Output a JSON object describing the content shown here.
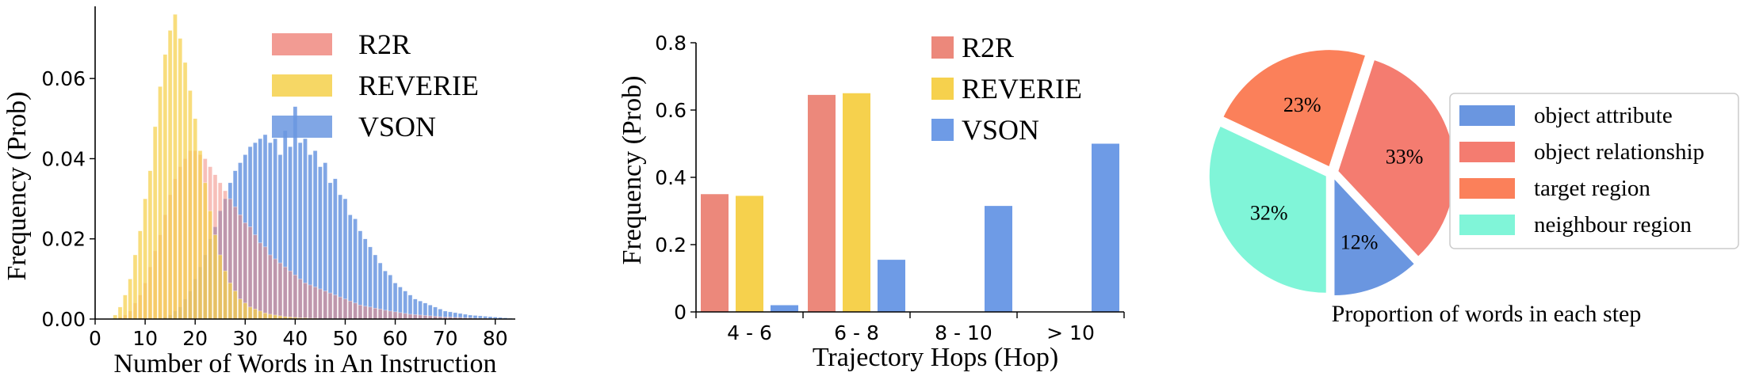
{
  "chart_data": [
    {
      "type": "bar",
      "subtype": "overlapping-histogram",
      "xlabel": "Number of Words in An Instruction",
      "ylabel": "Frequency (Prob)",
      "xlim": [
        0,
        84
      ],
      "ylim": [
        0,
        0.078
      ],
      "xticks": [
        "0",
        "10",
        "20",
        "30",
        "40",
        "50",
        "60",
        "70",
        "80"
      ],
      "yticks": [
        "0.00",
        "0.02",
        "0.04",
        "0.06"
      ],
      "legend_position": "top-right",
      "series": [
        {
          "name": "R2R",
          "color": "#f08a80",
          "x": [
            5,
            6,
            7,
            8,
            9,
            10,
            11,
            12,
            13,
            14,
            15,
            16,
            17,
            18,
            19,
            20,
            21,
            22,
            23,
            24,
            25,
            26,
            27,
            28,
            29,
            30,
            31,
            32,
            33,
            34,
            35,
            36,
            37,
            38,
            39,
            40,
            41,
            42,
            43,
            44,
            45,
            46,
            47,
            48,
            49,
            50,
            51,
            52,
            53,
            54,
            55,
            56,
            57,
            58,
            59,
            60,
            61,
            62,
            63,
            64,
            65,
            66,
            67,
            68,
            69,
            70,
            71,
            72,
            73,
            74,
            75,
            76,
            77,
            78,
            79,
            80
          ],
          "values": [
            0.0005,
            0.001,
            0.002,
            0.004,
            0.006,
            0.009,
            0.013,
            0.017,
            0.021,
            0.026,
            0.031,
            0.035,
            0.038,
            0.04,
            0.042,
            0.042,
            0.041,
            0.04,
            0.038,
            0.036,
            0.034,
            0.032,
            0.03,
            0.028,
            0.026,
            0.024,
            0.023,
            0.021,
            0.019,
            0.018,
            0.016,
            0.015,
            0.014,
            0.013,
            0.012,
            0.011,
            0.01,
            0.009,
            0.0085,
            0.008,
            0.0075,
            0.007,
            0.0065,
            0.006,
            0.0055,
            0.005,
            0.0045,
            0.004,
            0.0035,
            0.0032,
            0.003,
            0.0027,
            0.0025,
            0.0022,
            0.002,
            0.0018,
            0.0016,
            0.0014,
            0.0012,
            0.0011,
            0.001,
            0.0009,
            0.0008,
            0.0007,
            0.0006,
            0.0005,
            0.0005,
            0.0004,
            0.0004,
            0.0003,
            0.0003,
            0.0002,
            0.0002,
            0.0002,
            0.0001,
            0.0001
          ]
        },
        {
          "name": "REVERIE",
          "color": "#f5d04a",
          "x": [
            4,
            5,
            6,
            7,
            8,
            9,
            10,
            11,
            12,
            13,
            14,
            15,
            16,
            17,
            18,
            19,
            20,
            21,
            22,
            23,
            24,
            25,
            26,
            27,
            28,
            29,
            30,
            31,
            32,
            33,
            34,
            35,
            36,
            37,
            38,
            39,
            40,
            41,
            42,
            43,
            44,
            45,
            46,
            47,
            48,
            49,
            50
          ],
          "values": [
            0.001,
            0.003,
            0.006,
            0.01,
            0.016,
            0.022,
            0.03,
            0.037,
            0.048,
            0.058,
            0.066,
            0.072,
            0.076,
            0.07,
            0.064,
            0.057,
            0.05,
            0.042,
            0.034,
            0.027,
            0.021,
            0.016,
            0.012,
            0.009,
            0.007,
            0.005,
            0.004,
            0.003,
            0.0025,
            0.002,
            0.0015,
            0.0012,
            0.001,
            0.0008,
            0.0006,
            0.0005,
            0.0004,
            0.0003,
            0.0003,
            0.0002,
            0.0002,
            0.0001,
            0.0001,
            0.0001,
            0.0001,
            0.0001,
            0.0001
          ]
        },
        {
          "name": "VSON",
          "color": "#6a96e0",
          "x": [
            14,
            15,
            16,
            17,
            18,
            19,
            20,
            21,
            22,
            23,
            24,
            25,
            26,
            27,
            28,
            29,
            30,
            31,
            32,
            33,
            34,
            35,
            36,
            37,
            38,
            39,
            40,
            41,
            42,
            43,
            44,
            45,
            46,
            47,
            48,
            49,
            50,
            51,
            52,
            53,
            54,
            55,
            56,
            57,
            58,
            59,
            60,
            61,
            62,
            63,
            64,
            65,
            66,
            67,
            68,
            69,
            70,
            71,
            72,
            73,
            74,
            75,
            76,
            77,
            78,
            79,
            80,
            81,
            82,
            83
          ],
          "values": [
            0.0005,
            0.001,
            0.002,
            0.003,
            0.005,
            0.007,
            0.01,
            0.013,
            0.016,
            0.02,
            0.023,
            0.027,
            0.03,
            0.034,
            0.037,
            0.039,
            0.041,
            0.043,
            0.044,
            0.045,
            0.046,
            0.044,
            0.045,
            0.041,
            0.047,
            0.043,
            0.053,
            0.044,
            0.045,
            0.041,
            0.042,
            0.038,
            0.039,
            0.034,
            0.035,
            0.031,
            0.03,
            0.026,
            0.025,
            0.022,
            0.02,
            0.018,
            0.016,
            0.014,
            0.012,
            0.011,
            0.009,
            0.008,
            0.007,
            0.006,
            0.005,
            0.0045,
            0.004,
            0.0035,
            0.003,
            0.0025,
            0.002,
            0.0018,
            0.0016,
            0.0014,
            0.0012,
            0.001,
            0.0009,
            0.0008,
            0.0007,
            0.0006,
            0.0005,
            0.0004,
            0.0003,
            0.0002
          ]
        }
      ]
    },
    {
      "type": "bar",
      "subtype": "grouped",
      "xlabel": "Trajectory Hops (Hop)",
      "ylabel": "Frequency (Prob)",
      "ylim": [
        0,
        0.8
      ],
      "categories": [
        "4 - 6",
        "6 - 8",
        "8 - 10",
        "> 10"
      ],
      "yticks": [
        "0",
        "0.2",
        "0.4",
        "0.6",
        "0.8"
      ],
      "legend_position": "top-center",
      "series": [
        {
          "name": "R2R",
          "color": "#ec887b",
          "values": [
            0.35,
            0.645,
            0,
            0
          ]
        },
        {
          "name": "REVERIE",
          "color": "#f6d14d",
          "values": [
            0.345,
            0.65,
            0,
            0
          ]
        },
        {
          "name": "VSON",
          "color": "#6e9be6",
          "values": [
            0.02,
            0.155,
            0.315,
            0.5
          ]
        }
      ]
    },
    {
      "type": "pie",
      "caption": "Proportion of words in each step",
      "legend_position": "right",
      "exploded": true,
      "slices": [
        {
          "label": "object attribute",
          "value": 12,
          "text": "12%",
          "color": "#6a96e0"
        },
        {
          "label": "object relationship",
          "value": 33,
          "text": "33%",
          "color": "#f47c70"
        },
        {
          "label": "target region",
          "value": 23,
          "text": "23%",
          "color": "#fb805a"
        },
        {
          "label": "neighbour region",
          "value": 32,
          "text": "32%",
          "color": "#80f5d8"
        }
      ]
    }
  ]
}
